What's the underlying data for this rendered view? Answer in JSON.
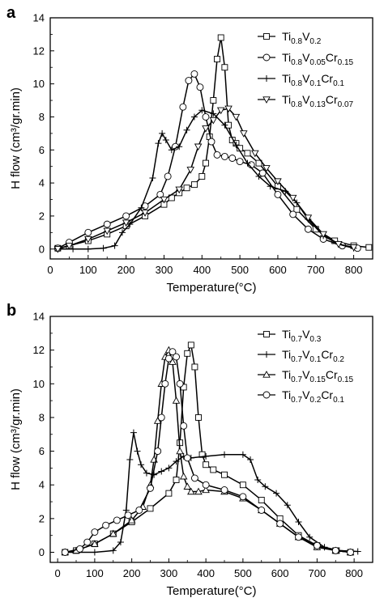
{
  "chart_data": [
    {
      "type": "line",
      "panel_label": "a",
      "xlabel": "Temperature(°C)",
      "ylabel": "H flow (cm³/gr.min)",
      "xlim": [
        0,
        850
      ],
      "ylim": [
        -0.6,
        14
      ],
      "xticks": [
        0,
        100,
        200,
        300,
        400,
        500,
        600,
        700,
        800
      ],
      "yticks": [
        0,
        2,
        4,
        6,
        8,
        10,
        12,
        14
      ],
      "x_tick_labels": [
        "0",
        "100",
        "200",
        "300",
        "400",
        "500",
        "600",
        "700",
        "800"
      ],
      "y_tick_labels": [
        "0",
        "2",
        "4",
        "6",
        "8",
        "10",
        "12",
        "14"
      ],
      "legend_position": "top-right",
      "series": [
        {
          "name": "Ti0.8V0.2",
          "legend_parts": [
            [
              "Ti",
              ""
            ],
            [
              "0.8",
              "sub"
            ],
            [
              "V",
              ""
            ],
            [
              "0.2",
              "sub"
            ]
          ],
          "marker": "square",
          "x": [
            20,
            50,
            100,
            150,
            200,
            250,
            300,
            320,
            340,
            360,
            380,
            400,
            410,
            420,
            430,
            440,
            450,
            460,
            470,
            480,
            490,
            500,
            520,
            550,
            600,
            650,
            700,
            750,
            800,
            840
          ],
          "y": [
            0.05,
            0.2,
            0.5,
            0.9,
            1.4,
            2.0,
            2.7,
            3.1,
            3.4,
            3.7,
            3.9,
            4.4,
            5.2,
            6.8,
            9.0,
            11.5,
            12.8,
            11.0,
            7.5,
            6.6,
            6.4,
            6.1,
            5.8,
            5.2,
            3.8,
            2.4,
            1.2,
            0.5,
            0.2,
            0.1
          ]
        },
        {
          "name": "Ti0.8V0.05Cr0.15",
          "legend_parts": [
            [
              "Ti",
              ""
            ],
            [
              "0.8",
              "sub"
            ],
            [
              "V",
              ""
            ],
            [
              "0.05",
              "sub"
            ],
            [
              "Cr",
              ""
            ],
            [
              "0.15",
              "sub"
            ]
          ],
          "marker": "circle",
          "x": [
            20,
            50,
            100,
            150,
            200,
            250,
            290,
            310,
            330,
            350,
            365,
            380,
            395,
            410,
            425,
            440,
            460,
            480,
            500,
            530,
            560,
            600,
            640,
            680,
            720,
            770,
            810
          ],
          "y": [
            0.05,
            0.4,
            1.0,
            1.5,
            2.0,
            2.6,
            3.3,
            4.4,
            6.2,
            8.6,
            10.2,
            10.6,
            9.8,
            8.0,
            6.5,
            5.7,
            5.6,
            5.5,
            5.3,
            5.1,
            4.6,
            3.3,
            2.1,
            1.2,
            0.6,
            0.2,
            0.05
          ]
        },
        {
          "name": "Ti0.8V0.1Cr0.1",
          "legend_parts": [
            [
              "Ti",
              ""
            ],
            [
              "0.8",
              "sub"
            ],
            [
              "V",
              ""
            ],
            [
              "0.1",
              "sub"
            ],
            [
              "Cr",
              ""
            ],
            [
              "0.1",
              "sub"
            ]
          ],
          "marker": "plus",
          "x": [
            20,
            60,
            100,
            140,
            170,
            190,
            210,
            240,
            270,
            285,
            295,
            305,
            320,
            340,
            360,
            380,
            400,
            430,
            460,
            490,
            520,
            550,
            580,
            620,
            650,
            680,
            720,
            760,
            800
          ],
          "y": [
            0.0,
            0.0,
            0.0,
            0.05,
            0.2,
            1.0,
            1.5,
            2.5,
            4.3,
            6.4,
            7.0,
            6.6,
            6.0,
            6.2,
            7.2,
            8.0,
            8.4,
            8.2,
            7.5,
            6.3,
            5.2,
            4.4,
            3.8,
            3.5,
            2.8,
            1.8,
            0.8,
            0.3,
            0.05
          ]
        },
        {
          "name": "Ti0.8V0.13Cr0.07",
          "legend_parts": [
            [
              "Ti",
              ""
            ],
            [
              "0.8",
              "sub"
            ],
            [
              "V",
              ""
            ],
            [
              "0.13",
              "sub"
            ],
            [
              "Cr",
              ""
            ],
            [
              "0.07",
              "sub"
            ]
          ],
          "marker": "triangle-down",
          "x": [
            20,
            50,
            100,
            150,
            200,
            250,
            300,
            340,
            370,
            390,
            410,
            430,
            450,
            470,
            490,
            510,
            540,
            570,
            600,
            640,
            680,
            720,
            760,
            800
          ],
          "y": [
            0.0,
            0.2,
            0.6,
            1.1,
            1.6,
            2.2,
            3.0,
            3.6,
            4.8,
            6.2,
            7.3,
            7.8,
            8.4,
            8.5,
            8.0,
            7.0,
            5.8,
            4.9,
            4.1,
            3.1,
            1.9,
            0.9,
            0.3,
            0.1
          ]
        }
      ]
    },
    {
      "type": "line",
      "panel_label": "b",
      "xlabel": "Temperature(°C)",
      "ylabel": "H flow (cm³/gr.min)",
      "xlim": [
        -20,
        850
      ],
      "ylim": [
        -0.6,
        14
      ],
      "xticks": [
        0,
        100,
        200,
        300,
        400,
        500,
        600,
        700,
        800
      ],
      "yticks": [
        0,
        2,
        4,
        6,
        8,
        10,
        12,
        14
      ],
      "x_tick_labels": [
        "0",
        "100",
        "200",
        "300",
        "400",
        "500",
        "600",
        "700",
        "800"
      ],
      "y_tick_labels": [
        "0",
        "2",
        "4",
        "6",
        "8",
        "10",
        "12",
        "14"
      ],
      "legend_position": "top-right",
      "series": [
        {
          "name": "Ti0.7V0.3",
          "legend_parts": [
            [
              "Ti",
              ""
            ],
            [
              "0.7",
              "sub"
            ],
            [
              "V",
              ""
            ],
            [
              "0.3",
              "sub"
            ]
          ],
          "marker": "square",
          "x": [
            20,
            50,
            100,
            150,
            200,
            250,
            300,
            320,
            330,
            340,
            350,
            360,
            370,
            380,
            390,
            400,
            420,
            450,
            500,
            550,
            600,
            650,
            700,
            750,
            790
          ],
          "y": [
            0.0,
            0.1,
            0.5,
            1.1,
            1.8,
            2.6,
            3.5,
            4.3,
            6.5,
            9.8,
            11.8,
            12.3,
            11.0,
            8.0,
            5.8,
            5.2,
            4.9,
            4.6,
            4.0,
            3.1,
            2.0,
            1.0,
            0.4,
            0.1,
            0.0
          ]
        },
        {
          "name": "Ti0.7V0.1Cr0.2",
          "legend_parts": [
            [
              "Ti",
              ""
            ],
            [
              "0.7",
              "sub"
            ],
            [
              "V",
              ""
            ],
            [
              "0.1",
              "sub"
            ],
            [
              "Cr",
              ""
            ],
            [
              "0.2",
              "sub"
            ]
          ],
          "marker": "plus",
          "x": [
            20,
            100,
            150,
            170,
            185,
            195,
            205,
            215,
            225,
            240,
            260,
            280,
            300,
            320,
            340,
            360,
            400,
            450,
            500,
            520,
            540,
            560,
            590,
            620,
            650,
            680,
            720,
            760,
            810
          ],
          "y": [
            0.0,
            0.0,
            0.1,
            0.6,
            2.5,
            5.5,
            7.1,
            6.0,
            5.2,
            4.7,
            4.6,
            4.8,
            5.0,
            5.4,
            5.7,
            5.6,
            5.7,
            5.8,
            5.8,
            5.5,
            4.3,
            3.9,
            3.5,
            2.8,
            1.8,
            0.9,
            0.3,
            0.1,
            0.05
          ]
        },
        {
          "name": "Ti0.7V0.15Cr0.15",
          "legend_parts": [
            [
              "Ti",
              ""
            ],
            [
              "0.7",
              "sub"
            ],
            [
              "V",
              ""
            ],
            [
              "0.15",
              "sub"
            ],
            [
              "Cr",
              ""
            ],
            [
              "0.15",
              "sub"
            ]
          ],
          "marker": "triangle-up",
          "x": [
            20,
            50,
            100,
            150,
            200,
            230,
            250,
            260,
            270,
            280,
            290,
            300,
            310,
            320,
            330,
            340,
            350,
            360,
            380,
            400,
            450,
            500,
            550,
            600,
            650,
            700,
            750,
            790
          ],
          "y": [
            0.0,
            0.1,
            0.5,
            1.1,
            1.9,
            2.7,
            4.0,
            5.5,
            7.8,
            10.0,
            11.6,
            12.0,
            11.3,
            9.0,
            6.0,
            4.5,
            3.9,
            3.6,
            3.6,
            3.7,
            3.6,
            3.2,
            2.5,
            1.7,
            0.9,
            0.3,
            0.1,
            0.0
          ]
        },
        {
          "name": "Ti0.7V0.2Cr0.1",
          "legend_parts": [
            [
              "Ti",
              ""
            ],
            [
              "0.7",
              "sub"
            ],
            [
              "V",
              ""
            ],
            [
              "0.2",
              "sub"
            ],
            [
              "Cr",
              ""
            ],
            [
              "0.1",
              "sub"
            ]
          ],
          "marker": "circle",
          "x": [
            20,
            60,
            80,
            100,
            130,
            160,
            190,
            220,
            250,
            270,
            280,
            290,
            300,
            310,
            320,
            330,
            340,
            350,
            370,
            400,
            450,
            500,
            550,
            600,
            650,
            700,
            750,
            790
          ],
          "y": [
            0.0,
            0.2,
            0.6,
            1.2,
            1.6,
            1.9,
            2.2,
            2.5,
            3.8,
            6.0,
            8.0,
            10.0,
            11.5,
            11.9,
            11.6,
            10.0,
            7.5,
            5.6,
            4.4,
            4.0,
            3.7,
            3.3,
            2.5,
            1.7,
            0.9,
            0.4,
            0.1,
            0.0
          ]
        }
      ]
    }
  ]
}
